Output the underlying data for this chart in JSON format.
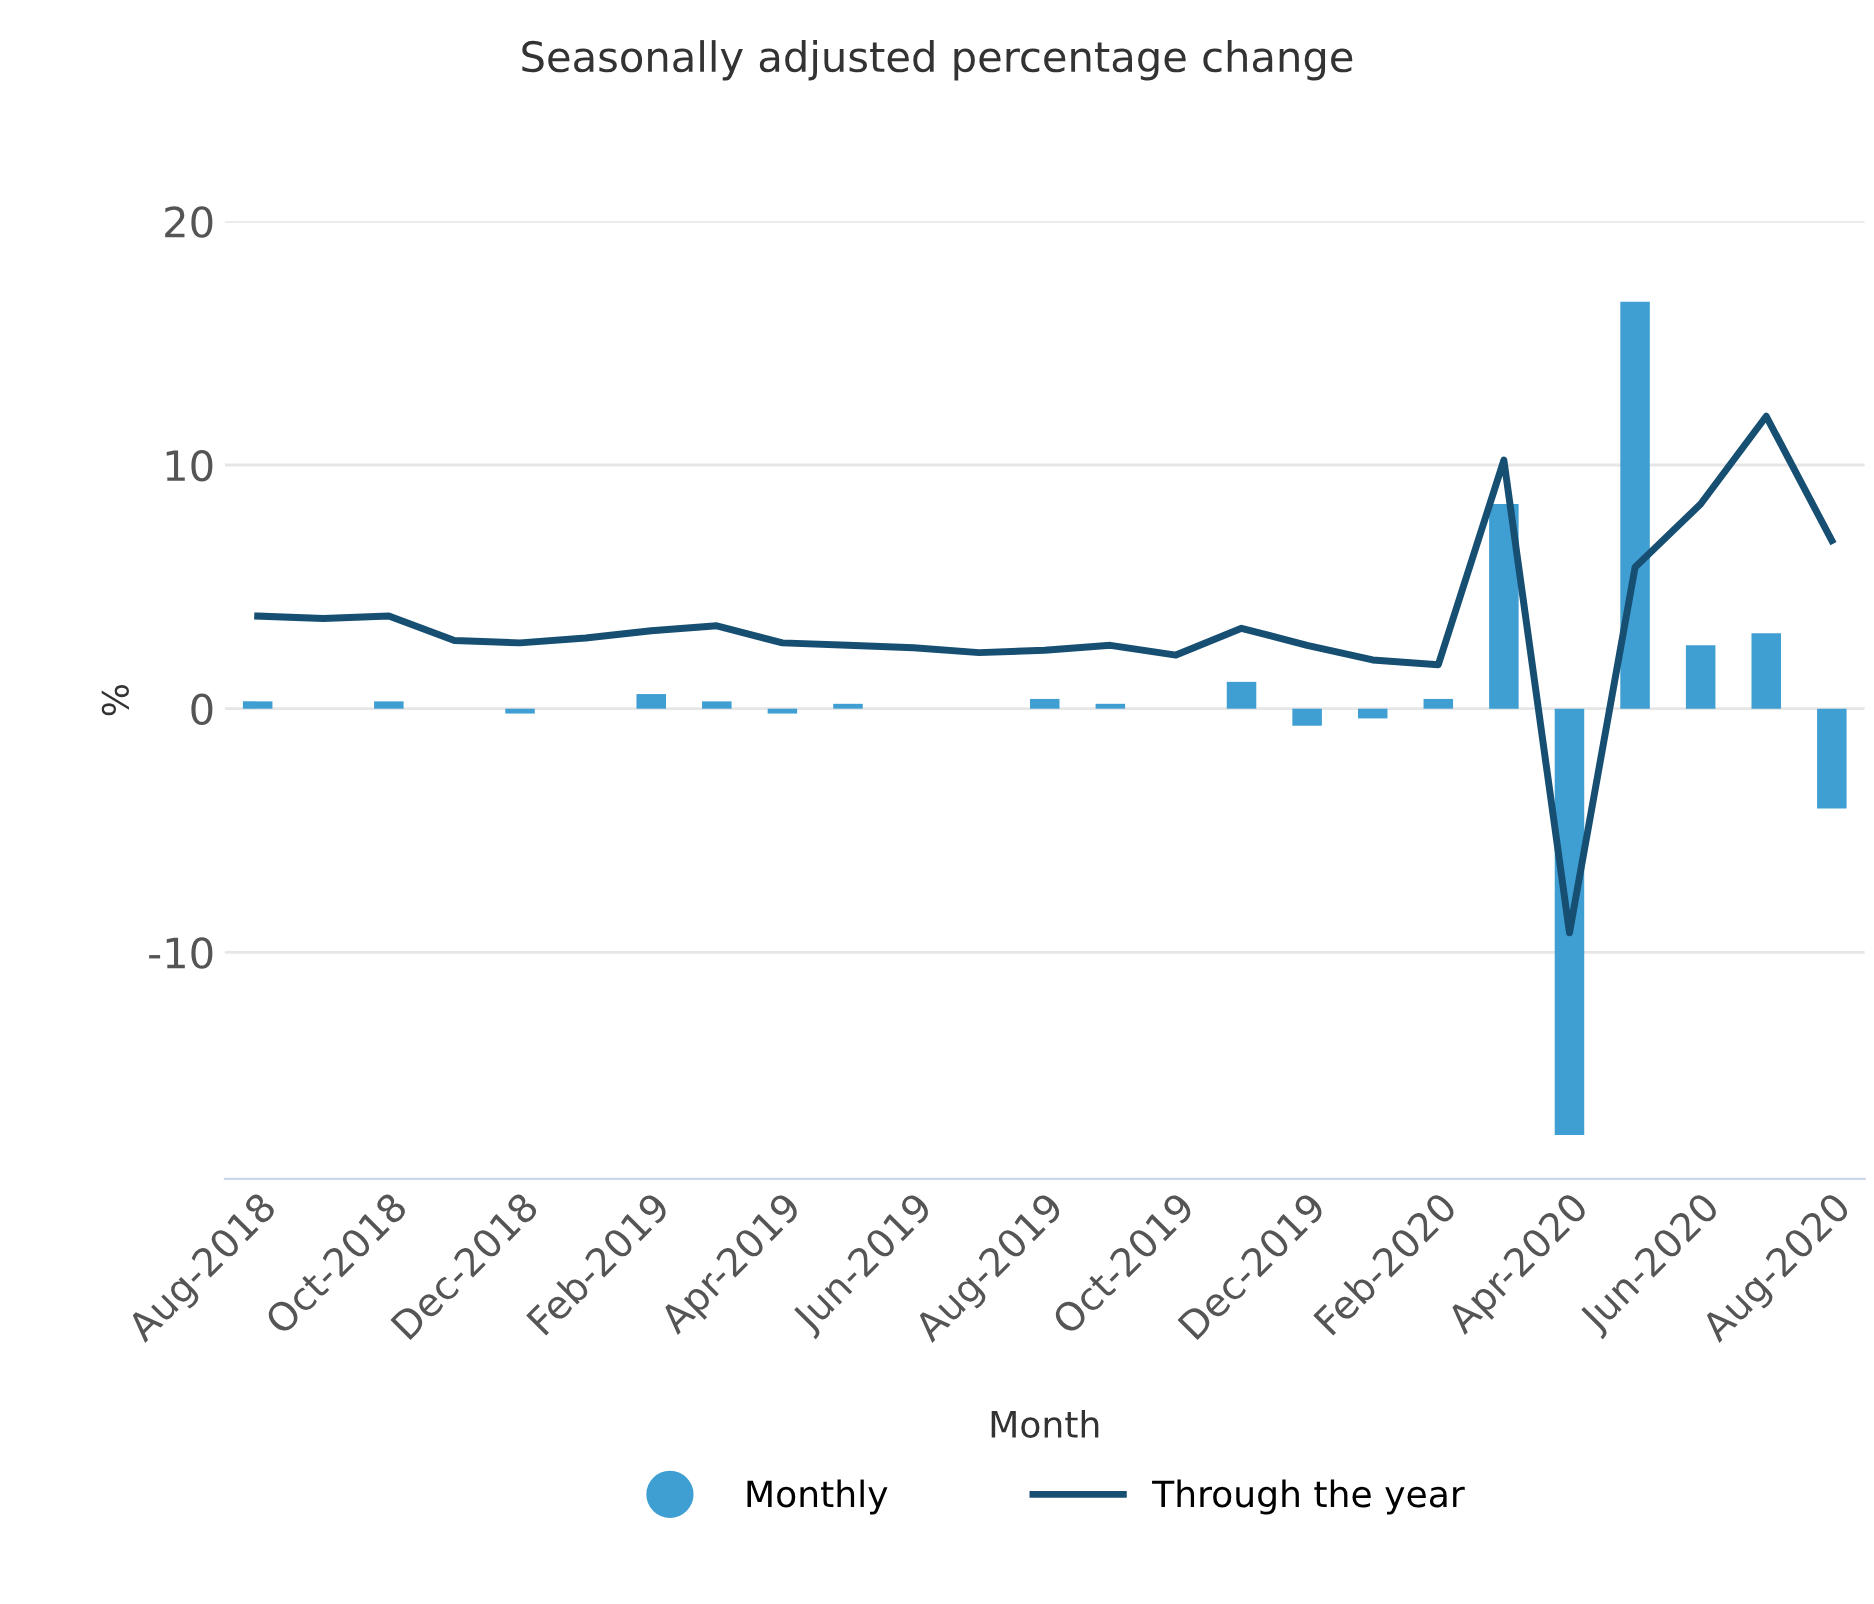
{
  "chart_data": {
    "type": "bar",
    "title": "Seasonally adjusted percentage change",
    "xlabel": "Month",
    "ylabel": "%",
    "categories": [
      "Aug-2018",
      null,
      "Oct-2018",
      null,
      "Dec-2018",
      null,
      "Feb-2019",
      null,
      "Apr-2019",
      null,
      "Jun-2019",
      null,
      "Aug-2019",
      null,
      "Oct-2019",
      null,
      "Dec-2019",
      null,
      "Feb-2020",
      null,
      "Apr-2020",
      null,
      "Jun-2020",
      null,
      "Aug-2020"
    ],
    "series": [
      {
        "name": "Monthly",
        "color": "#3f9fd3",
        "values": [
          0.3,
          0,
          0.3,
          0,
          -0.2,
          0,
          0.6,
          0.3,
          -0.2,
          0.2,
          0,
          0,
          0.4,
          0.2,
          0,
          1.1,
          -0.7,
          -0.4,
          0.4,
          8.4,
          -17.5,
          16.7,
          2.6,
          3.1,
          -4.1
        ]
      },
      {
        "name": "Through the year",
        "type": "line",
        "color": "#174f73",
        "values": [
          3.8,
          3.7,
          3.8,
          2.8,
          2.7,
          2.9,
          3.2,
          3.4,
          2.7,
          2.6,
          2.5,
          2.3,
          2.4,
          2.6,
          2.2,
          3.3,
          2.6,
          2.0,
          1.8,
          10.2,
          -9.2,
          5.8,
          8.4,
          12.0,
          6.9
        ]
      }
    ],
    "ylim": [
      -19.3,
      20
    ],
    "yticks": [
      {
        "value": -10,
        "label": "-10"
      },
      0,
      10,
      20
    ],
    "grid": "y",
    "legend": "bottom"
  }
}
